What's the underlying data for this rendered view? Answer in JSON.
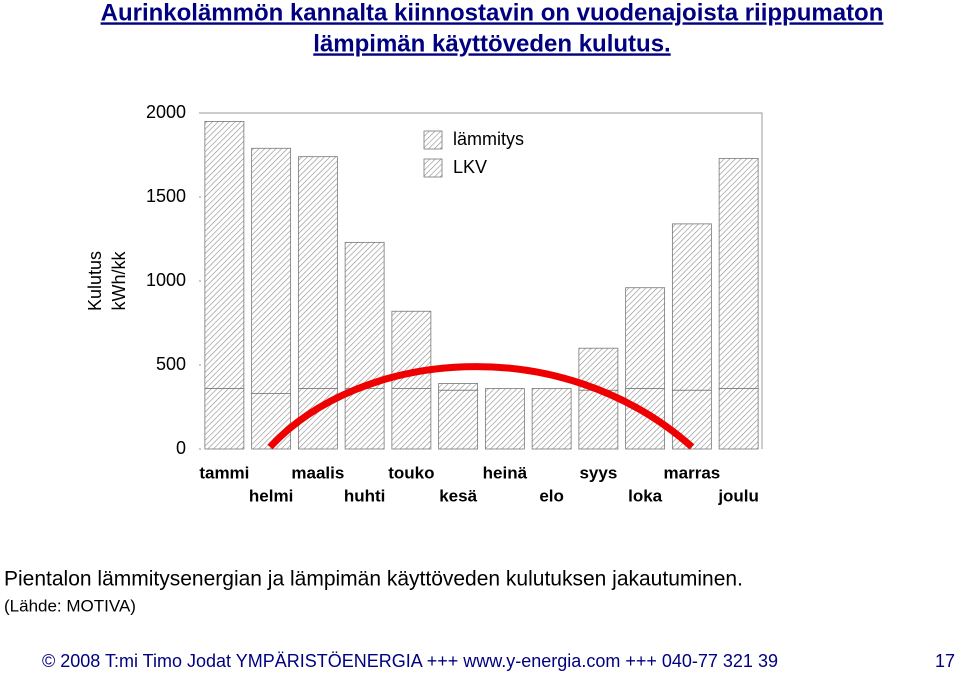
{
  "title": [
    "Aurinkolämmön kannalta kiinnostavin on vuodenajoista riippumaton",
    "lämpimän käyttöveden kulutus."
  ],
  "chart_data": {
    "type": "bar",
    "stacked": true,
    "y_label": [
      "Kulutus",
      "kWh/kk"
    ],
    "categories": [
      "tammi",
      "helmi",
      "maalis",
      "huhti",
      "touko",
      "kesä",
      "heinä",
      "elo",
      "syys",
      "loka",
      "marras",
      "joulu"
    ],
    "series": [
      {
        "name": "LKV",
        "color": "#8c8c8c",
        "values": [
          360,
          330,
          360,
          360,
          360,
          350,
          360,
          360,
          350,
          360,
          350,
          360
        ]
      },
      {
        "name": "lämmitys",
        "color": "#8c8c8c",
        "values": [
          1590,
          1460,
          1380,
          870,
          460,
          40,
          0,
          0,
          250,
          600,
          990,
          1370
        ]
      }
    ],
    "ylim": [
      0,
      2000
    ],
    "yticks": [
      0,
      500,
      1000,
      1500,
      2000
    ]
  },
  "caption": "Pientalon lämmitysenergian ja lämpimän käyttöveden kulutuksen jakautuminen.",
  "source": "(Lähde: MOTIVA)",
  "footer": {
    "text": "© 2008 T:mi Timo Jodat YMPÄRISTÖENERGIA  +++  www.y-energia.com  +++  040-77 321 39",
    "page": "17"
  }
}
